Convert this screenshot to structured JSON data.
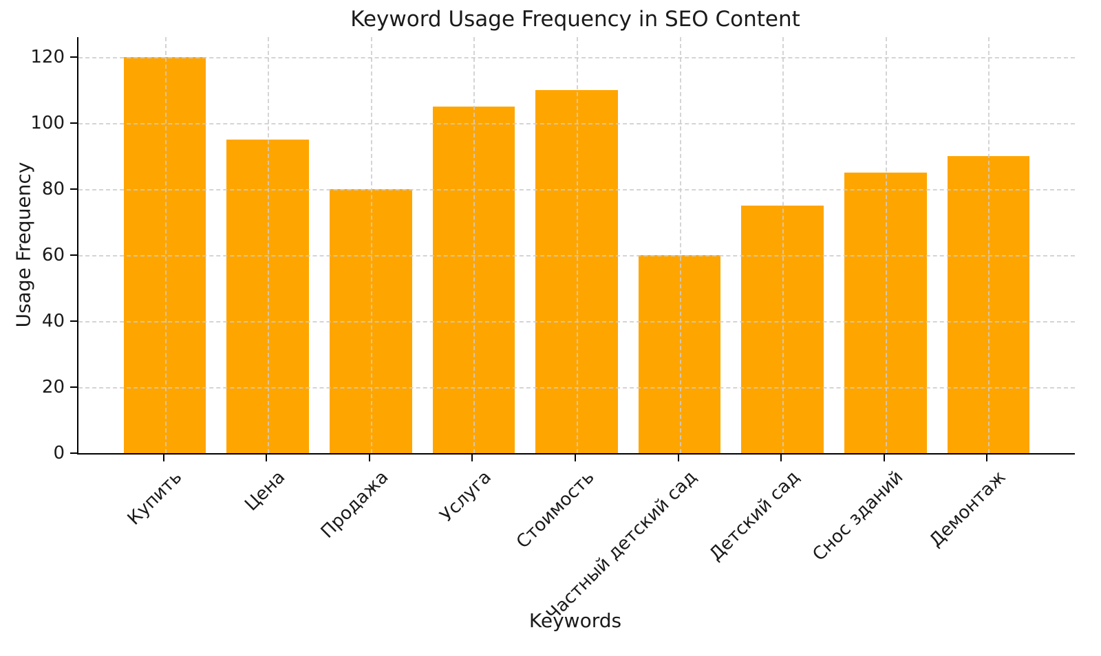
{
  "chart_data": {
    "type": "bar",
    "title": "Keyword Usage Frequency in SEO Content",
    "xlabel": "Keywords",
    "ylabel": "Usage Frequency",
    "categories": [
      "Купить",
      "Цена",
      "Продажа",
      "Услуга",
      "Стоимость",
      "Частный детский сад",
      "Детский сад",
      "Снос зданий",
      "Демонтаж"
    ],
    "values": [
      120,
      95,
      80,
      105,
      110,
      60,
      75,
      85,
      90
    ],
    "yticks": [
      0,
      20,
      40,
      60,
      80,
      100,
      120
    ],
    "ylim": [
      0,
      126
    ],
    "xtick_rotation_deg": 45,
    "bar_color": "#FFA500",
    "grid": "dashed, horizontal and vertical, drawn over bars",
    "grid_color": "#cdcdcd",
    "spine_color": "#000000",
    "legend": "none"
  }
}
